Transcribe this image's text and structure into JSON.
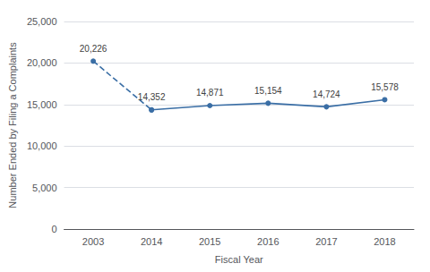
{
  "chart_data": {
    "type": "line",
    "categories": [
      "2003",
      "2014",
      "2015",
      "2016",
      "2017",
      "2018"
    ],
    "series": [
      {
        "color": "#3a6ea5",
        "line_style": "dashed",
        "marker": "circle",
        "values": [
          20226,
          14352,
          null,
          null,
          null,
          null
        ],
        "value_labels": [
          "20,226",
          "14,352",
          null,
          null,
          null,
          null
        ]
      },
      {
        "color": "#3a6ea5",
        "line_style": "solid",
        "marker": "circle",
        "values": [
          null,
          14352,
          14871,
          15154,
          14724,
          15578
        ],
        "value_labels": [
          null,
          "14,352",
          "14,871",
          "15,154",
          "14,724",
          "15,578"
        ]
      }
    ],
    "xlabel": "Fiscal Year",
    "ylabel": "Number Ended by Filing a Complaints",
    "ylim": [
      0,
      25000
    ],
    "yticks": [
      0,
      {
        "value": 5000,
        "label": "5,000"
      },
      {
        "value": 10000,
        "label": "10,000"
      },
      {
        "value": 15000,
        "label": "15,000"
      },
      {
        "value": 20000,
        "label": "20,000"
      },
      {
        "value": 25000,
        "label": "25,000"
      }
    ],
    "grid": true,
    "data_labels": true
  }
}
